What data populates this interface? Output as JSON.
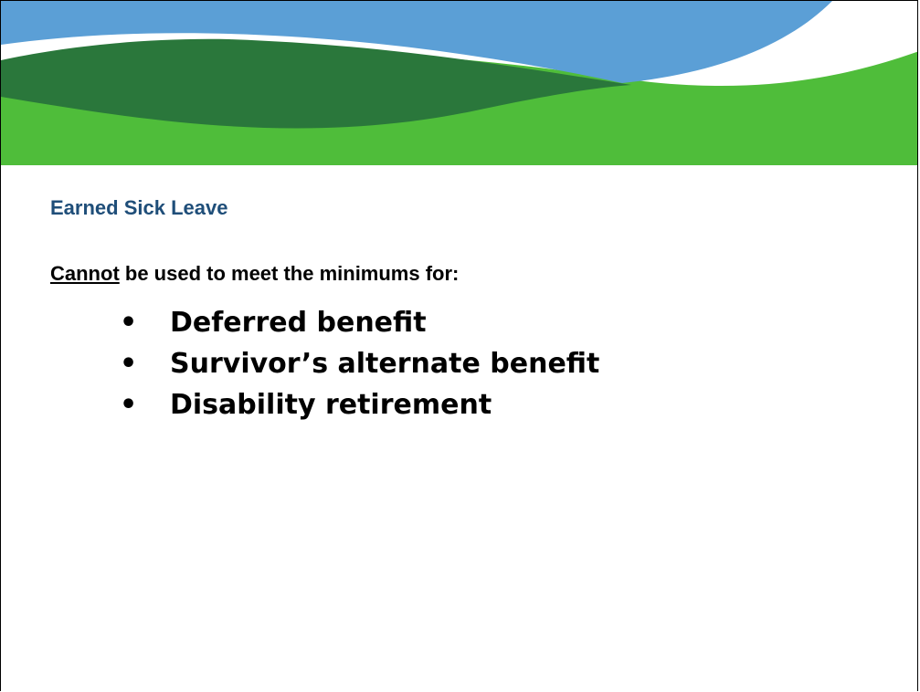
{
  "title": "Earned Sick Leave",
  "lead": {
    "emphasis": "Cannot",
    "rest": " be used to meet the minimums for:"
  },
  "bullets": [
    "Deferred benefit",
    "Survivor’s alternate benefit",
    "Disability retirement"
  ]
}
